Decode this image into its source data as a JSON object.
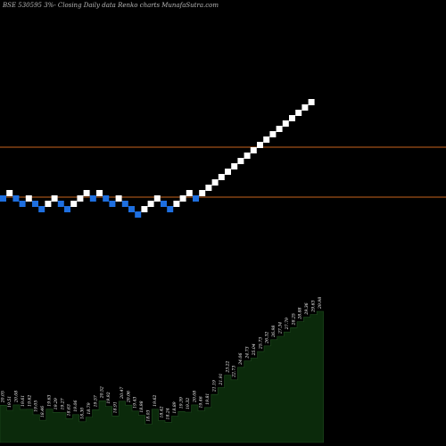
{
  "chart_data": {
    "type": "renko",
    "title": "BSE 530595 3%- Closing Daily data Renko charts MunafaSutra.com",
    "colors": {
      "background": "#000000",
      "up_brick": "#ffffff",
      "down_brick": "#1e6fe0",
      "reference_line": "#c8641e",
      "volume_area": "#0b2a0b",
      "volume_outline": "#1f4d1f",
      "volume_label": "#ffffff"
    },
    "reference_lines": [
      25.6,
      20.0
    ],
    "price_range": [
      15.0,
      31.0
    ],
    "bricks": [
      {
        "dir": "down",
        "level": 20.0
      },
      {
        "dir": "up",
        "level": 20.6
      },
      {
        "dir": "down",
        "level": 20.0
      },
      {
        "dir": "down",
        "level": 19.4
      },
      {
        "dir": "up",
        "level": 20.0
      },
      {
        "dir": "down",
        "level": 19.4
      },
      {
        "dir": "down",
        "level": 18.8
      },
      {
        "dir": "up",
        "level": 19.4
      },
      {
        "dir": "up",
        "level": 20.0
      },
      {
        "dir": "down",
        "level": 19.4
      },
      {
        "dir": "down",
        "level": 18.8
      },
      {
        "dir": "up",
        "level": 19.4
      },
      {
        "dir": "up",
        "level": 20.0
      },
      {
        "dir": "up",
        "level": 20.6
      },
      {
        "dir": "down",
        "level": 20.0
      },
      {
        "dir": "up",
        "level": 20.6
      },
      {
        "dir": "down",
        "level": 20.0
      },
      {
        "dir": "down",
        "level": 19.4
      },
      {
        "dir": "up",
        "level": 20.0
      },
      {
        "dir": "down",
        "level": 19.4
      },
      {
        "dir": "down",
        "level": 18.8
      },
      {
        "dir": "down",
        "level": 18.2
      },
      {
        "dir": "up",
        "level": 18.8
      },
      {
        "dir": "up",
        "level": 19.4
      },
      {
        "dir": "up",
        "level": 20.0
      },
      {
        "dir": "down",
        "level": 19.4
      },
      {
        "dir": "down",
        "level": 18.8
      },
      {
        "dir": "up",
        "level": 19.4
      },
      {
        "dir": "up",
        "level": 20.0
      },
      {
        "dir": "up",
        "level": 20.6
      },
      {
        "dir": "down",
        "level": 20.0
      },
      {
        "dir": "up",
        "level": 20.6
      },
      {
        "dir": "up",
        "level": 21.2
      },
      {
        "dir": "up",
        "level": 21.8
      },
      {
        "dir": "up",
        "level": 22.4
      },
      {
        "dir": "up",
        "level": 23.0
      },
      {
        "dir": "up",
        "level": 23.6
      },
      {
        "dir": "up",
        "level": 24.2
      },
      {
        "dir": "up",
        "level": 24.8
      },
      {
        "dir": "up",
        "level": 25.4
      },
      {
        "dir": "up",
        "level": 26.0
      },
      {
        "dir": "up",
        "level": 26.6
      },
      {
        "dir": "up",
        "level": 27.2
      },
      {
        "dir": "up",
        "level": 27.8
      },
      {
        "dir": "up",
        "level": 28.4
      },
      {
        "dir": "up",
        "level": 29.0
      },
      {
        "dir": "up",
        "level": 29.6
      },
      {
        "dir": "up",
        "level": 30.2
      },
      {
        "dir": "up",
        "level": 30.8
      }
    ],
    "price_labels": [
      "20.05",
      "19.51",
      "20.08",
      "19.61",
      "19.62",
      "19.05",
      "18.46",
      "19.63",
      "19.29",
      "19.27",
      "18.63",
      "19.06",
      "18.30",
      "18.79",
      "19.57",
      "20.52",
      "19.92",
      "18.91",
      "20.47",
      "20.06",
      "19.43",
      "18.98",
      "18.03",
      "19.62",
      "18.42",
      "18.24",
      "18.89",
      "19.39",
      "19.32",
      "20.08",
      "19.46",
      "19.81",
      "21.19",
      "21.91",
      "23.22",
      "22.73",
      "24.06",
      "24.73",
      "25.04",
      "25.73",
      "26.32",
      "26.98",
      "27.34",
      "27.79",
      "28.25",
      "28.88",
      "29.36",
      "29.63",
      "29.98"
    ]
  }
}
